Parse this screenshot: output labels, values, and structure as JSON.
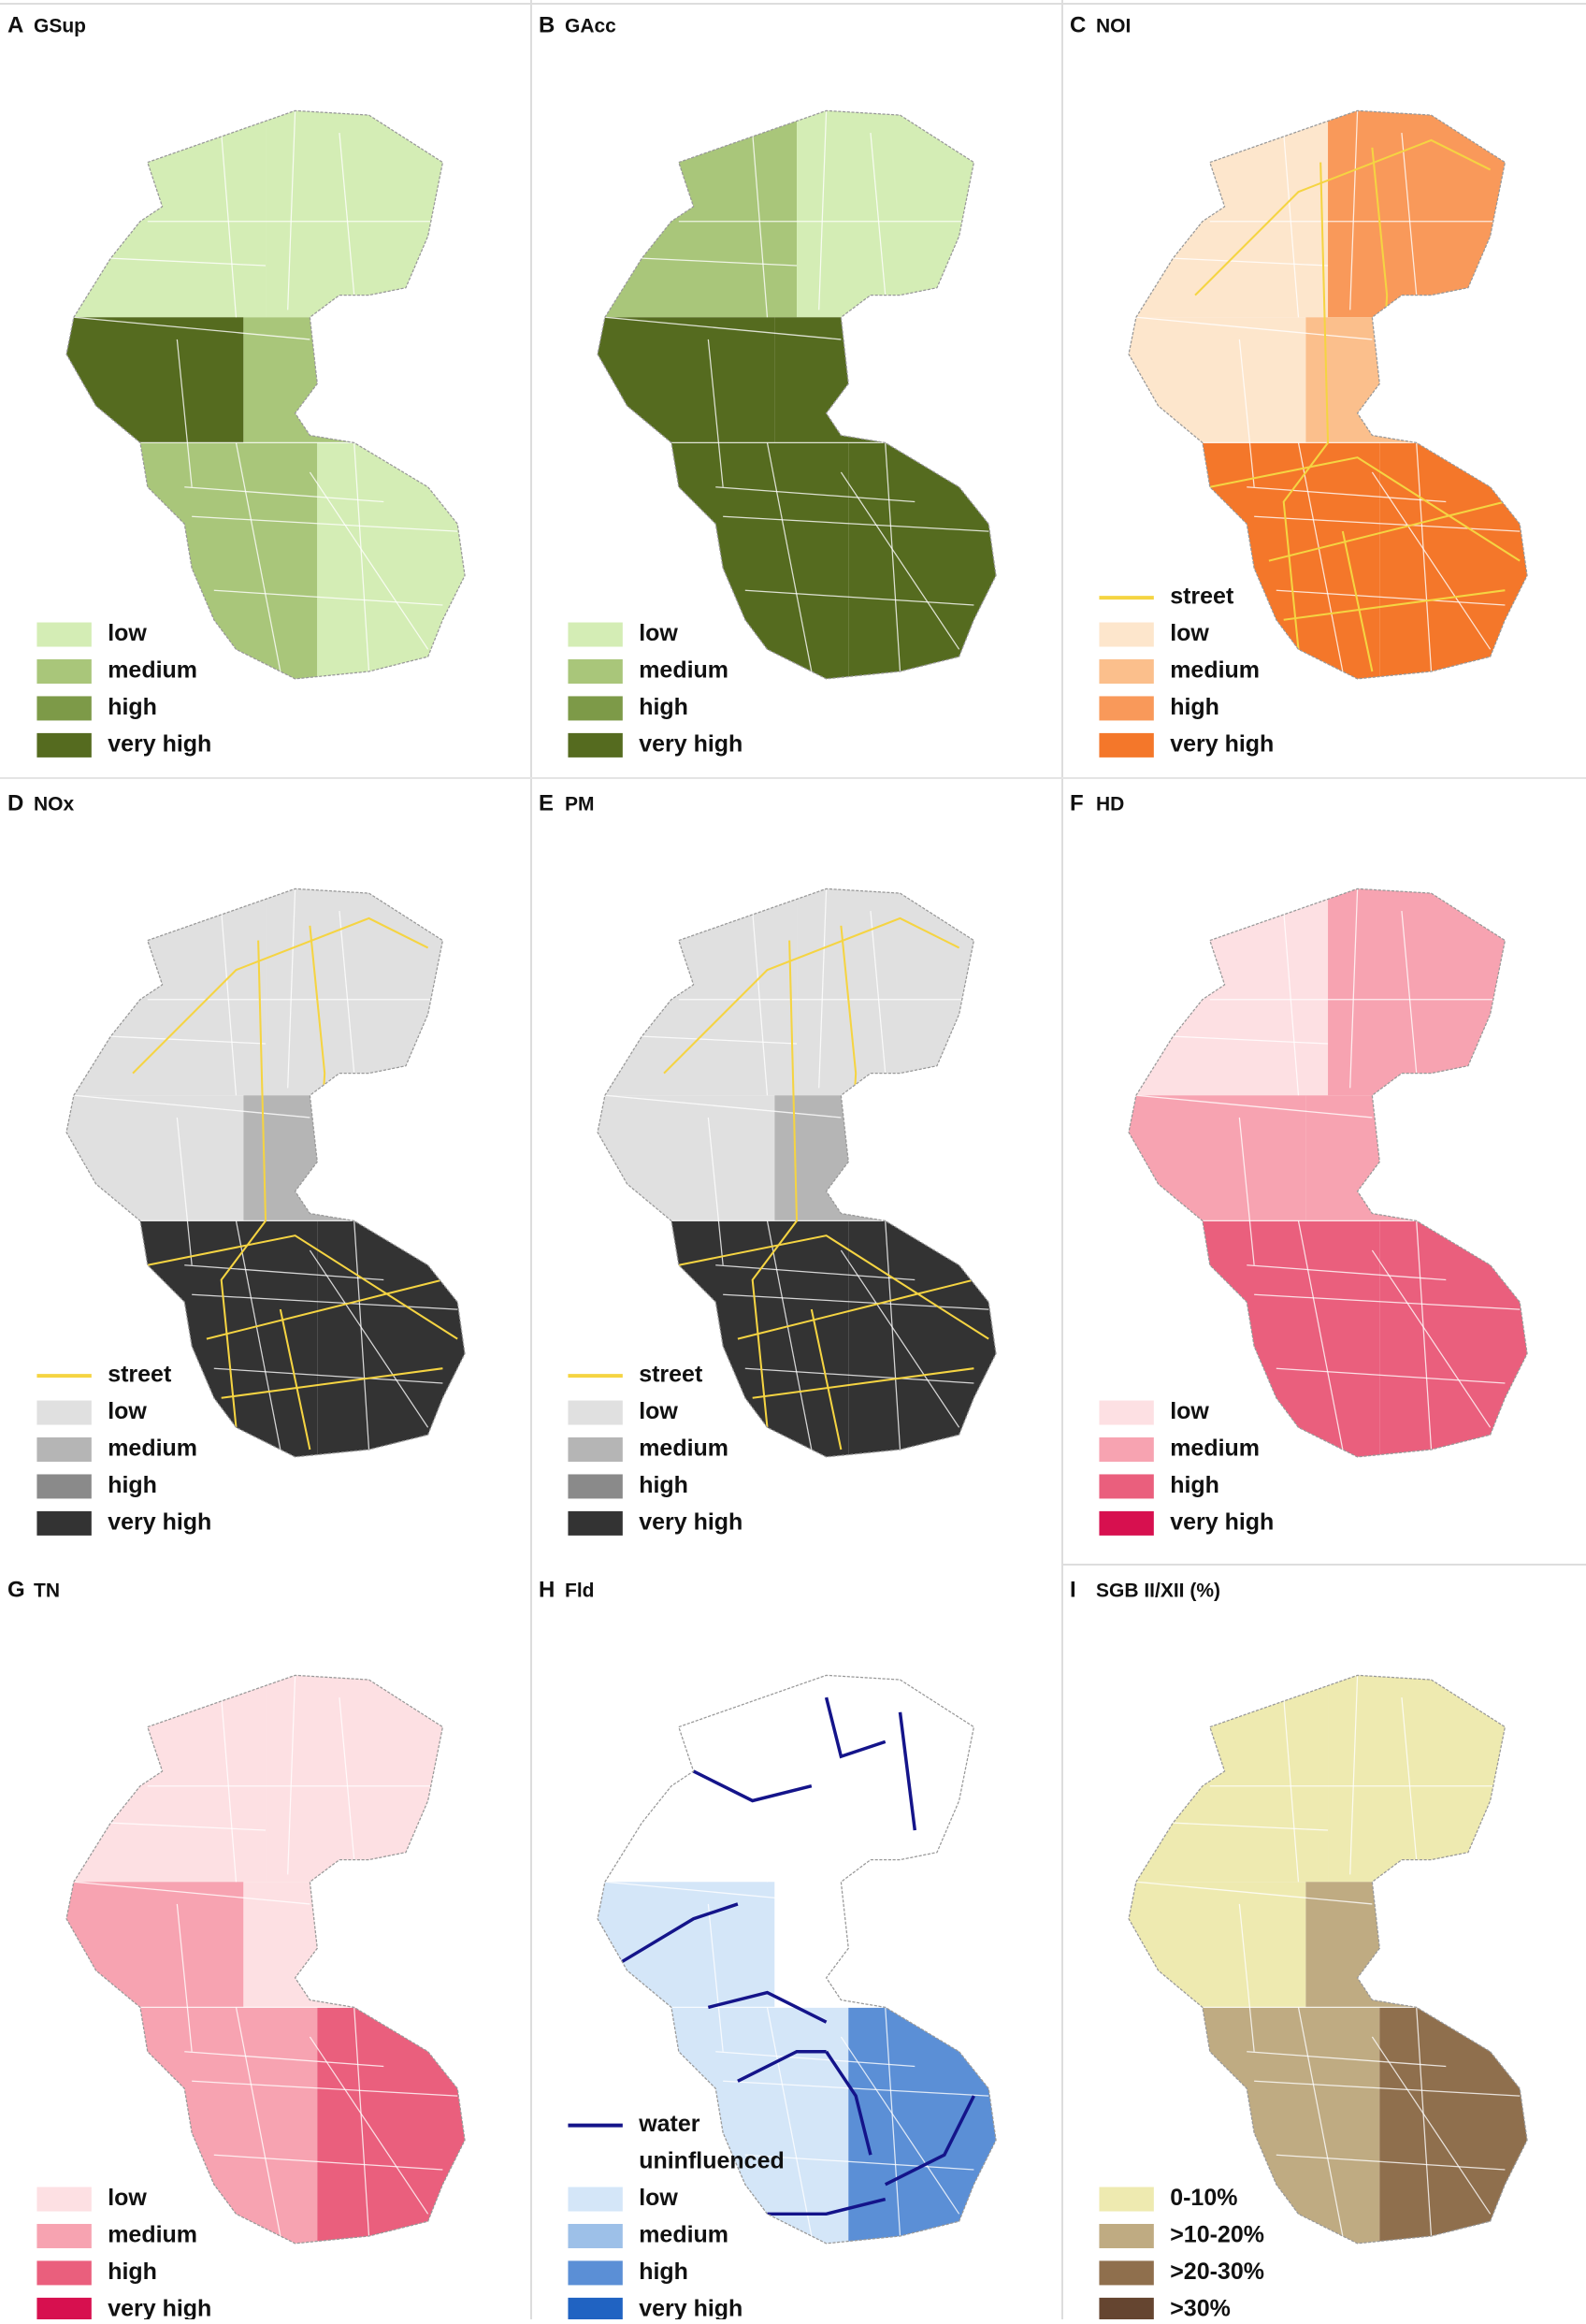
{
  "panels": [
    {
      "letter": "A",
      "title": "GSup",
      "legend": [
        {
          "label": "low",
          "color": "#d4edb5",
          "swatch": "fill"
        },
        {
          "label": "medium",
          "color": "#a9c67a",
          "swatch": "fill"
        },
        {
          "label": "high",
          "color": "#7d9a48",
          "swatch": "fill"
        },
        {
          "label": "very high",
          "color": "#556b1f",
          "swatch": "fill"
        }
      ]
    },
    {
      "letter": "B",
      "title": "GAcc",
      "legend": [
        {
          "label": "low",
          "color": "#d4edb5",
          "swatch": "fill"
        },
        {
          "label": "medium",
          "color": "#a9c67a",
          "swatch": "fill"
        },
        {
          "label": "high",
          "color": "#7d9a48",
          "swatch": "fill"
        },
        {
          "label": "very high",
          "color": "#556b1f",
          "swatch": "fill"
        }
      ]
    },
    {
      "letter": "C",
      "title": "NOI",
      "legend": [
        {
          "label": "street",
          "color": "#f5d442",
          "swatch": "line"
        },
        {
          "label": "low",
          "color": "#fde6cc",
          "swatch": "fill"
        },
        {
          "label": "medium",
          "color": "#fbbf8c",
          "swatch": "fill"
        },
        {
          "label": "high",
          "color": "#f9995a",
          "swatch": "fill"
        },
        {
          "label": "very high",
          "color": "#f4772a",
          "swatch": "fill"
        }
      ]
    },
    {
      "letter": "D",
      "title": "NOx",
      "legend": [
        {
          "label": "street",
          "color": "#f5d442",
          "swatch": "line"
        },
        {
          "label": "low",
          "color": "#e0e0e0",
          "swatch": "fill"
        },
        {
          "label": "medium",
          "color": "#b5b5b5",
          "swatch": "fill"
        },
        {
          "label": "high",
          "color": "#8a8a8a",
          "swatch": "fill"
        },
        {
          "label": "very high",
          "color": "#333333",
          "swatch": "fill"
        }
      ]
    },
    {
      "letter": "E",
      "title": "PM",
      "legend": [
        {
          "label": "street",
          "color": "#f5d442",
          "swatch": "line"
        },
        {
          "label": "low",
          "color": "#e0e0e0",
          "swatch": "fill"
        },
        {
          "label": "medium",
          "color": "#b5b5b5",
          "swatch": "fill"
        },
        {
          "label": "high",
          "color": "#8a8a8a",
          "swatch": "fill"
        },
        {
          "label": "very high",
          "color": "#333333",
          "swatch": "fill"
        }
      ]
    },
    {
      "letter": "F",
      "title": "HD",
      "legend": [
        {
          "label": "low",
          "color": "#fde0e3",
          "swatch": "fill"
        },
        {
          "label": "medium",
          "color": "#f7a3b1",
          "swatch": "fill"
        },
        {
          "label": "high",
          "color": "#ea5f7d",
          "swatch": "fill"
        },
        {
          "label": "very high",
          "color": "#d7104f",
          "swatch": "fill"
        }
      ]
    },
    {
      "letter": "G",
      "title": "TN",
      "legend": [
        {
          "label": "low",
          "color": "#fde0e3",
          "swatch": "fill"
        },
        {
          "label": "medium",
          "color": "#f7a3b1",
          "swatch": "fill"
        },
        {
          "label": "high",
          "color": "#ea5f7d",
          "swatch": "fill"
        },
        {
          "label": "very high",
          "color": "#d7104f",
          "swatch": "fill"
        }
      ]
    },
    {
      "letter": "H",
      "title": "Fld",
      "legend": [
        {
          "label": "water",
          "color": "#14148a",
          "swatch": "line"
        },
        {
          "label": "uninfluenced",
          "color": "#ffffff",
          "swatch": "fill"
        },
        {
          "label": "low",
          "color": "#d4e6f8",
          "swatch": "fill"
        },
        {
          "label": "medium",
          "color": "#9dc0e8",
          "swatch": "fill"
        },
        {
          "label": "high",
          "color": "#5b8fd6",
          "swatch": "fill"
        },
        {
          "label": "very high",
          "color": "#2063c2",
          "swatch": "fill"
        }
      ]
    },
    {
      "letter": "I",
      "title": "SGB II/XII (%)",
      "legend": [
        {
          "label": "0-10%",
          "color": "#eeeab0",
          "swatch": "fill"
        },
        {
          "label": ">10-20%",
          "color": "#bfab82",
          "swatch": "fill"
        },
        {
          "label": ">20-30%",
          "color": "#8f6f4d",
          "swatch": "fill"
        },
        {
          "label": ">30%",
          "color": "#654530",
          "swatch": "fill"
        }
      ]
    }
  ]
}
